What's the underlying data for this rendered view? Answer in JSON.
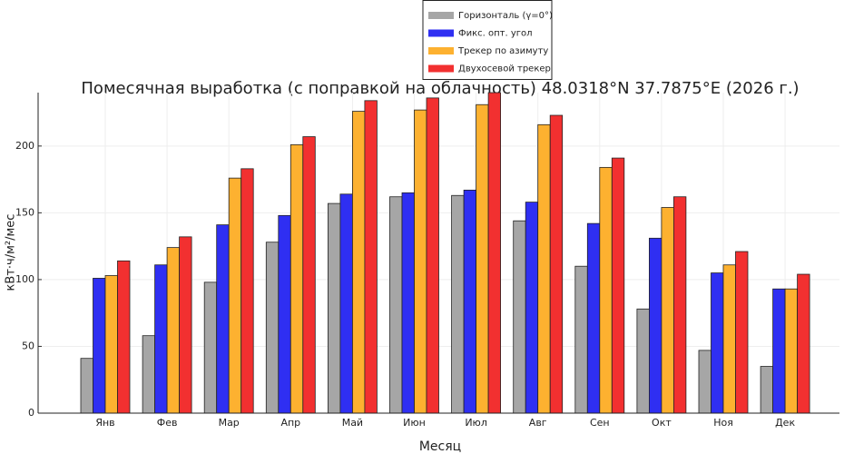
{
  "chart_data": {
    "type": "bar",
    "title": "Помесячная выработка (с поправкой на облачность) 48.0318°N  37.7875°E  (2026 г.)",
    "x_label": "Месяц",
    "y_label": "кВт·ч/м²/мес",
    "categories": [
      "Янв",
      "Фев",
      "Мар",
      "Апр",
      "Май",
      "Июн",
      "Июл",
      "Авг",
      "Сен",
      "Окт",
      "Ноя",
      "Дек"
    ],
    "series": [
      {
        "name": "Горизонталь (γ=0°)",
        "color": "#a6a6a6",
        "values": [
          41,
          58,
          98,
          128,
          157,
          162,
          163,
          144,
          110,
          78,
          47,
          35
        ]
      },
      {
        "name": "Фикс. опт. угол",
        "color": "#2f2ff2",
        "values": [
          101,
          111,
          141,
          148,
          164,
          165,
          167,
          158,
          142,
          131,
          105,
          93
        ]
      },
      {
        "name": "Трекер по азимуту",
        "color": "#fdb130",
        "values": [
          103,
          124,
          176,
          201,
          226,
          227,
          231,
          216,
          184,
          154,
          111,
          93
        ]
      },
      {
        "name": "Двухосевой трекер",
        "color": "#f23030",
        "values": [
          114,
          132,
          183,
          207,
          234,
          236,
          240,
          223,
          191,
          162,
          121,
          104
        ]
      }
    ],
    "ylim": [
      0,
      240
    ],
    "yticks": [
      0,
      50,
      100,
      150,
      200
    ],
    "grid": true
  }
}
